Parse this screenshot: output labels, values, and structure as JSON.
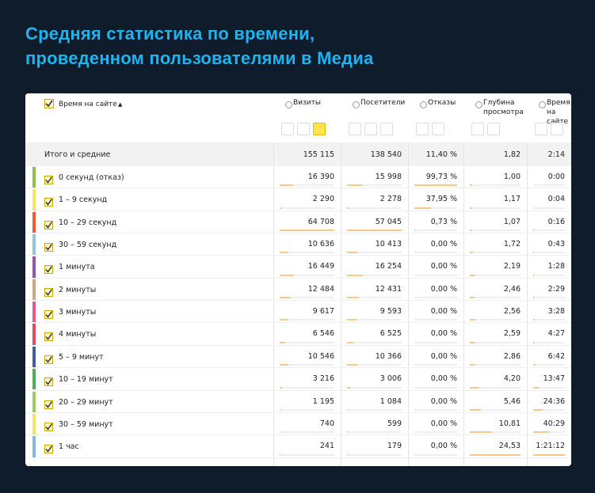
{
  "title": [
    "Средняя статистика по времени,",
    "проведенном пользователями в Медиа"
  ],
  "table": {
    "header": {
      "dimension": "Время на сайте",
      "sort_arrow": "▲",
      "columns": [
        [
          "Визиты"
        ],
        [
          "Посетители"
        ],
        [
          "Отказы"
        ],
        [
          "Глубина",
          "просмотра"
        ],
        [
          "Время",
          "на сайте"
        ]
      ]
    },
    "totals": {
      "label": "Итого и средние",
      "cells": [
        "155 115",
        "138 540",
        "11,40 %",
        "1,82",
        "2:14"
      ]
    },
    "rows": [
      {
        "label": "0 секунд (отказ)",
        "color": "#8bc34a",
        "cells": [
          "16 390",
          "15 998",
          "99,73 %",
          "1,00",
          "0:00"
        ]
      },
      {
        "label": "1 – 9 секунд",
        "color": "#ffe066",
        "cells": [
          "2 290",
          "2 278",
          "37,95 %",
          "1,17",
          "0:04"
        ]
      },
      {
        "label": "10 – 29 секунд",
        "color": "#ef5a3c",
        "cells": [
          "64 708",
          "57 045",
          "0,73 %",
          "1,07",
          "0:16"
        ]
      },
      {
        "label": "30 – 59 секунд",
        "color": "#8ec5ea",
        "cells": [
          "10 636",
          "10 413",
          "0,00 %",
          "1,72",
          "0:43"
        ]
      },
      {
        "label": "1 минута",
        "color": "#9b4fb5",
        "cells": [
          "16 449",
          "16 254",
          "0,00 %",
          "2,19",
          "1:28"
        ]
      },
      {
        "label": "2 минуты",
        "color": "#d3a77a",
        "cells": [
          "12 484",
          "12 431",
          "0,00 %",
          "2,46",
          "2:29"
        ]
      },
      {
        "label": "3 минуты",
        "color": "#e45a8f",
        "cells": [
          "9 617",
          "9 593",
          "0,00 %",
          "2,56",
          "3:28"
        ]
      },
      {
        "label": "4 минуты",
        "color": "#e24a5e",
        "cells": [
          "6 546",
          "6 525",
          "0,00 %",
          "2,59",
          "4:27"
        ]
      },
      {
        "label": "5 – 9 минут",
        "color": "#3f5ea8",
        "cells": [
          "10 546",
          "10 366",
          "0,00 %",
          "2,86",
          "6:42"
        ]
      },
      {
        "label": "10 – 19 минут",
        "color": "#4caf50",
        "cells": [
          "3 216",
          "3 006",
          "0,00 %",
          "4,20",
          "13:47"
        ]
      },
      {
        "label": "20 – 29 минут",
        "color": "#9ccc65",
        "cells": [
          "1 195",
          "1 084",
          "0,00 %",
          "5,46",
          "24:36"
        ]
      },
      {
        "label": "30 – 59 минут",
        "color": "#ffe066",
        "cells": [
          "740",
          "599",
          "0,00 %",
          "10,81",
          "40:29"
        ]
      },
      {
        "label": "1 час",
        "color": "#7fb8e6",
        "cells": [
          "241",
          "179",
          "0,00 %",
          "24,53",
          "1:21:12"
        ]
      }
    ]
  }
}
